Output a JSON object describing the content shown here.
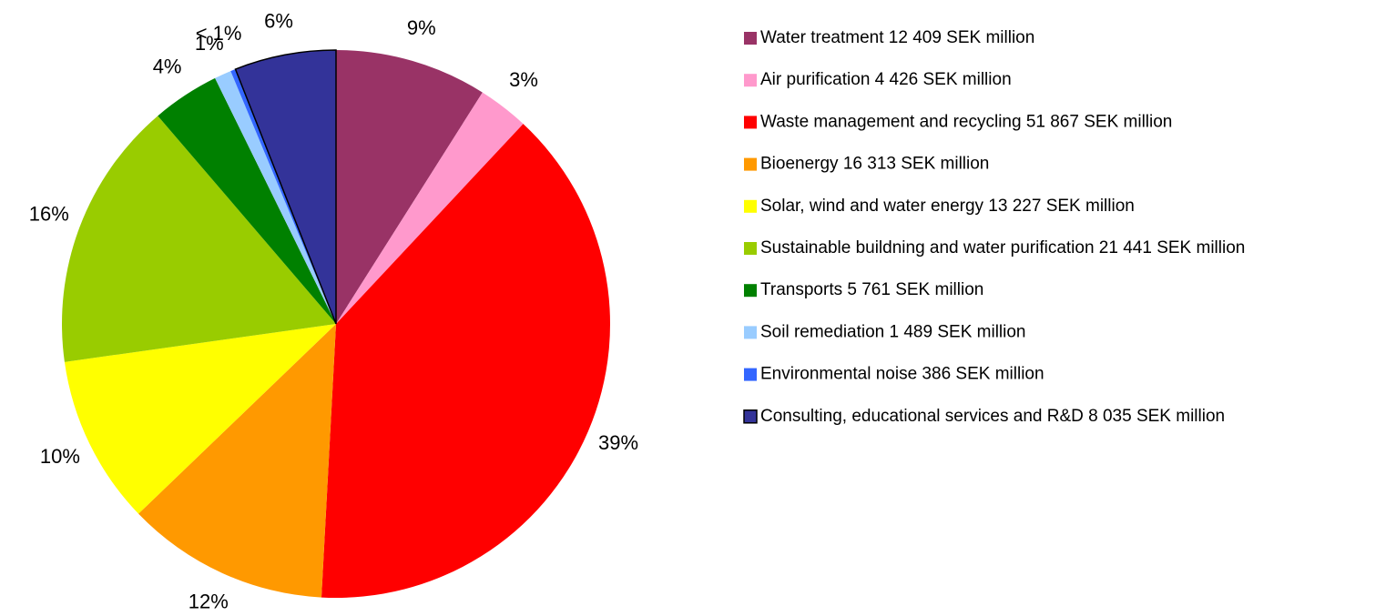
{
  "chart_data": {
    "type": "pie",
    "categories": [
      "Water treatment 12 409 SEK million",
      "Air purification 4 426 SEK million",
      "Waste management and recycling 51 867 SEK million",
      "Bioenergy 16 313 SEK million",
      "Solar, wind and water energy 13 227 SEK million",
      "Sustainable buildning and water purification 21 441 SEK million",
      "Transports 5 761 SEK million",
      "Soil remediation 1 489 SEK million",
      "Environmental noise 386 SEK million",
      "Consulting, educational services and R&D 8 035 SEK million"
    ],
    "values": [
      9,
      3,
      39,
      12,
      10,
      16,
      4,
      1,
      0.3,
      6
    ],
    "value_labels": [
      "9%",
      "3%",
      "39%",
      "12%",
      "10%",
      "16%",
      "4%",
      "1%",
      "< 1%",
      "6%"
    ],
    "colors": [
      "#993366",
      "#ff99cc",
      "#ff0000",
      "#ff9900",
      "#ffff00",
      "#99cc00",
      "#008000",
      "#99ccff",
      "#3366ff",
      "#333399"
    ],
    "legend": "right"
  }
}
